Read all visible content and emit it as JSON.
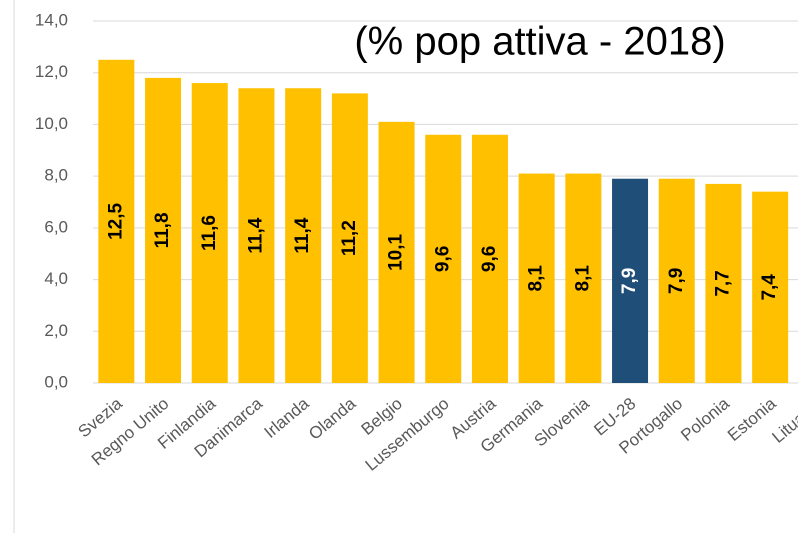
{
  "chart_data": {
    "type": "bar",
    "title": "(% pop attiva - 2018)",
    "categories": [
      "Svezia",
      "Regno Unito",
      "Finlandia",
      "Danimarca",
      "Irlanda",
      "Olanda",
      "Belgio",
      "Lussemburgo",
      "Austria",
      "Germania",
      "Slovenia",
      "EU-28",
      "Portogallo",
      "Polonia",
      "Estonia",
      "Lituania"
    ],
    "values": [
      12.5,
      11.8,
      11.6,
      11.4,
      11.4,
      11.2,
      10.1,
      9.6,
      9.6,
      8.1,
      8.1,
      7.9,
      7.9,
      7.7,
      7.4,
      null
    ],
    "value_labels": [
      "12,5",
      "11,8",
      "11,6",
      "11,4",
      "11,4",
      "11,2",
      "10,1",
      "9,6",
      "9,6",
      "8,1",
      "8,1",
      "7,9",
      "7,9",
      "7,7",
      "7,4",
      null
    ],
    "colors": [
      "#ffc000",
      "#ffc000",
      "#ffc000",
      "#ffc000",
      "#ffc000",
      "#ffc000",
      "#ffc000",
      "#ffc000",
      "#ffc000",
      "#ffc000",
      "#ffc000",
      "#1f4e79",
      "#ffc000",
      "#ffc000",
      "#ffc000",
      "#ffc000"
    ],
    "ylim": [
      0,
      14
    ],
    "yticks": [
      {
        "value": 0,
        "label": "0,0"
      },
      {
        "value": 2,
        "label": "2,0"
      },
      {
        "value": 4,
        "label": "4,0"
      },
      {
        "value": 6,
        "label": "6,0"
      },
      {
        "value": 8,
        "label": "8,0"
      },
      {
        "value": 10,
        "label": "10,0"
      },
      {
        "value": 12,
        "label": "12,0"
      },
      {
        "value": 14,
        "label": "14,0"
      }
    ],
    "grid": true
  }
}
